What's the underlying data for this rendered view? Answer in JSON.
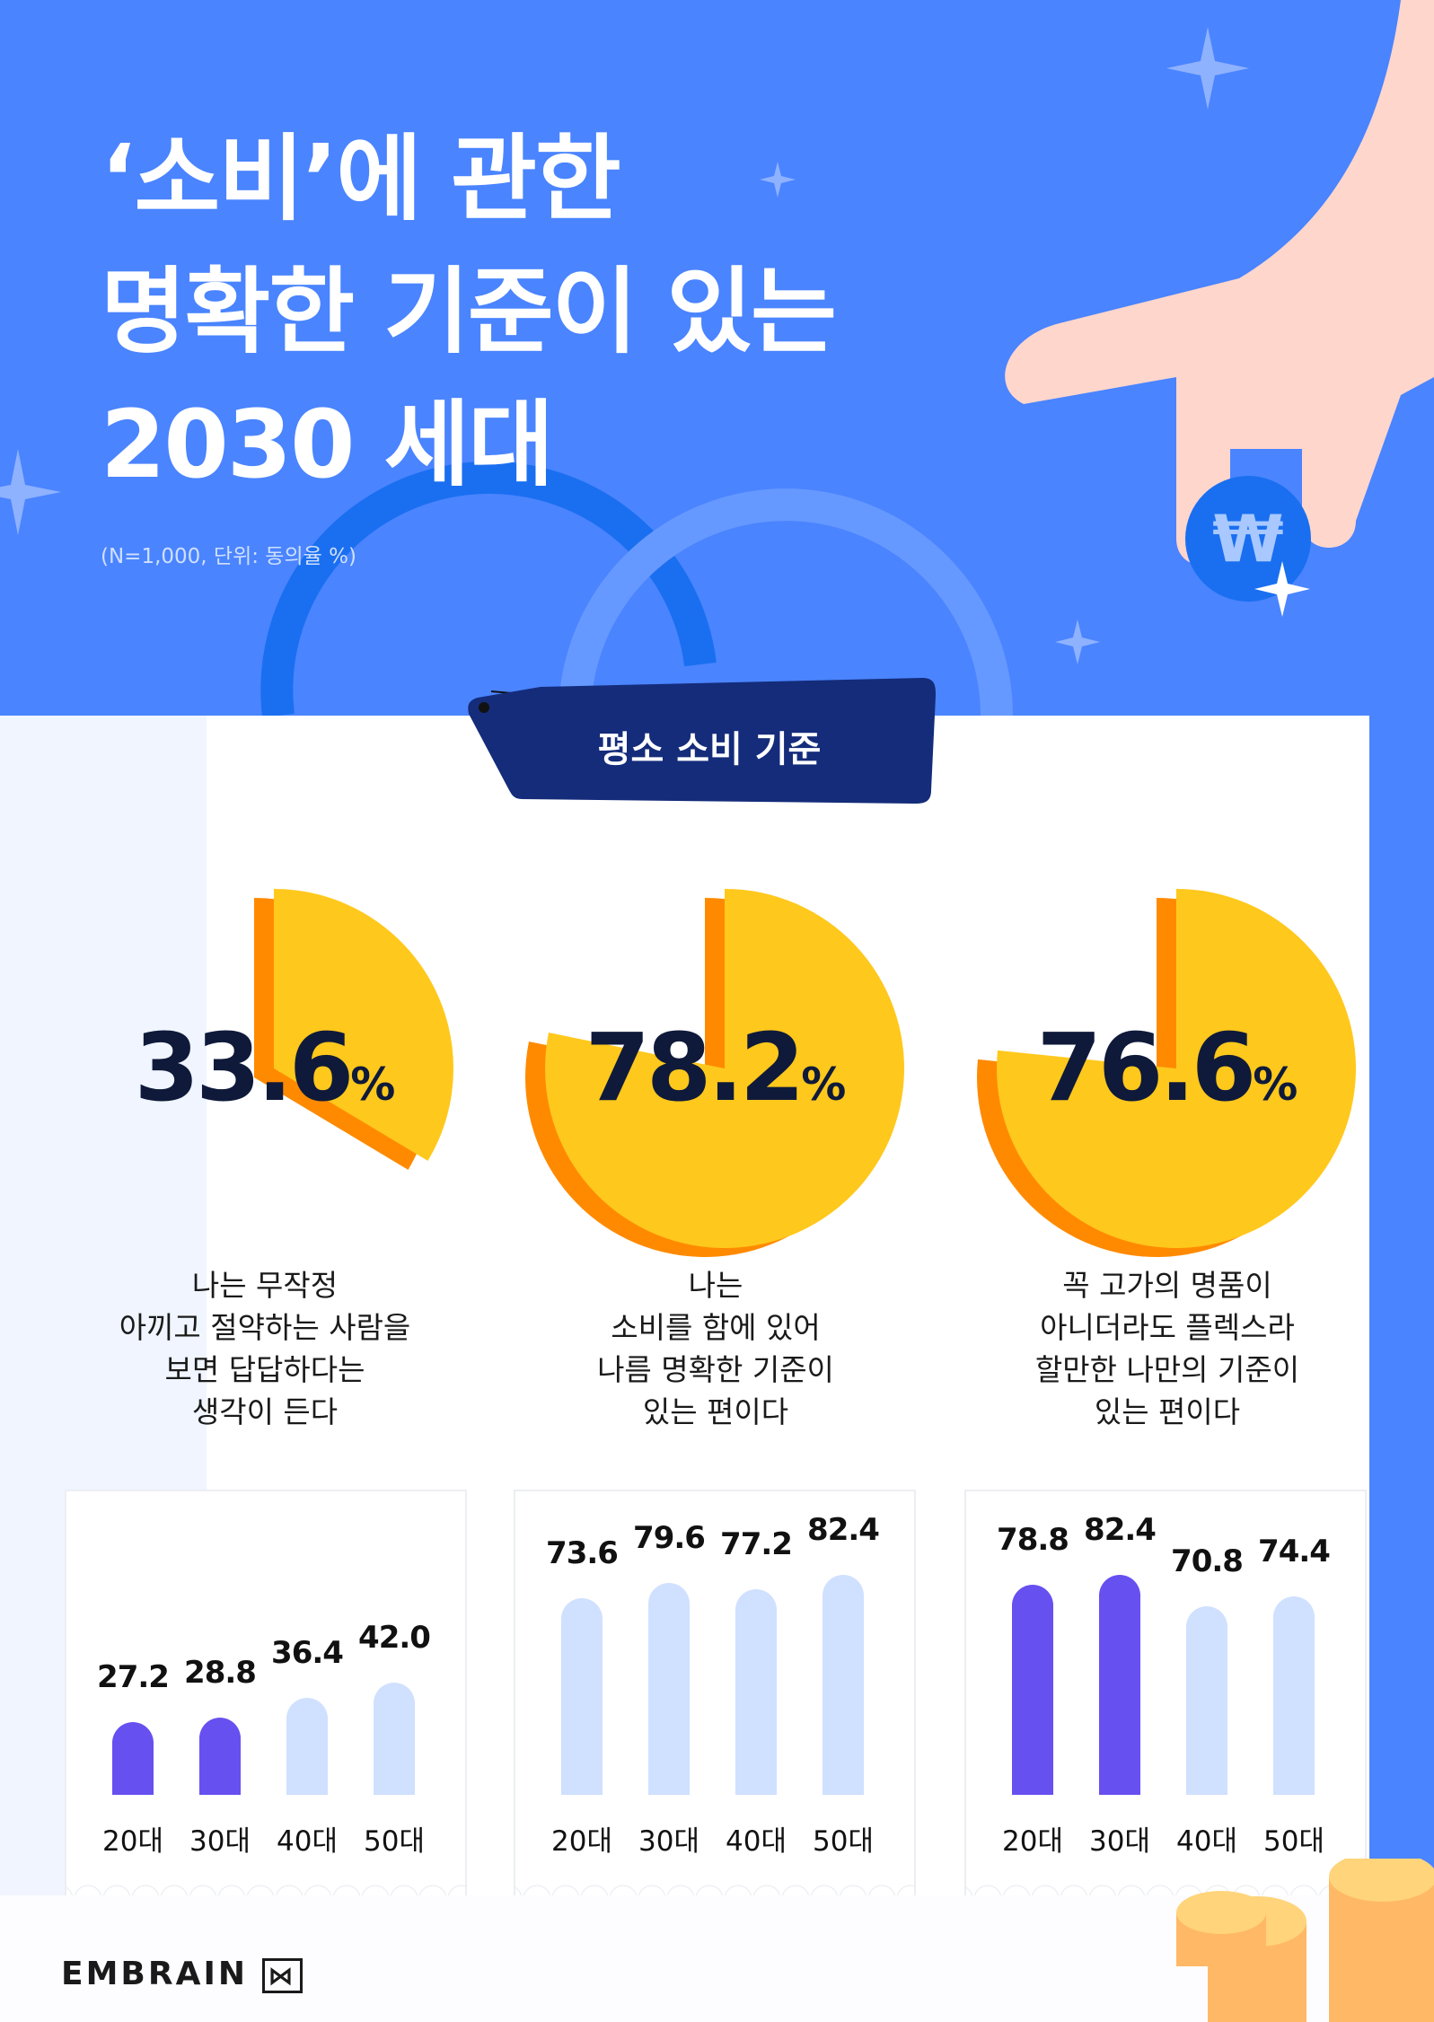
{
  "header": {
    "title_lines": [
      "‘소비’에 관한",
      "명확한 기준이 있는",
      "2030 세대"
    ],
    "subtitle": "(N=1,000, 단위: 동의율 %)"
  },
  "section_tag": "평소 소비 기준",
  "colors": {
    "background": "#4a84ff",
    "tag": "#142c7a",
    "highlight_bar": "#6650f0",
    "normal_bar": "#d0e0ff",
    "coin": "#ffcc1c"
  },
  "chart_data": [
    {
      "type": "pie",
      "value": 33.6,
      "value_label": "33.6",
      "unit": "%",
      "description": [
        "나는 무작정",
        "아끼고 절약하는 사람을",
        "보면 답답하다는",
        "생각이 든다"
      ],
      "bars": {
        "type": "bar",
        "categories": [
          "20대",
          "30대",
          "40대",
          "50대"
        ],
        "values": [
          27.2,
          28.8,
          36.4,
          42.0
        ],
        "labels": [
          "27.2",
          "28.8",
          "36.4",
          "42.0"
        ],
        "highlight": [
          true,
          true,
          false,
          false
        ]
      }
    },
    {
      "type": "pie",
      "value": 78.2,
      "value_label": "78.2",
      "unit": "%",
      "description": [
        "나는",
        "소비를 함에 있어",
        "나름 명확한 기준이",
        "있는 편이다"
      ],
      "bars": {
        "type": "bar",
        "categories": [
          "20대",
          "30대",
          "40대",
          "50대"
        ],
        "values": [
          73.6,
          79.6,
          77.2,
          82.4
        ],
        "labels": [
          "73.6",
          "79.6",
          "77.2",
          "82.4"
        ],
        "highlight": [
          false,
          false,
          false,
          false
        ]
      }
    },
    {
      "type": "pie",
      "value": 76.6,
      "value_label": "76.6",
      "unit": "%",
      "description": [
        "꼭 고가의 명품이",
        "아니더라도 플렉스라",
        "할만한 나만의 기준이",
        "있는 편이다"
      ],
      "bars": {
        "type": "bar",
        "categories": [
          "20대",
          "30대",
          "40대",
          "50대"
        ],
        "values": [
          78.8,
          82.4,
          70.8,
          74.4
        ],
        "labels": [
          "78.8",
          "82.4",
          "70.8",
          "74.4"
        ],
        "highlight": [
          true,
          true,
          false,
          false
        ]
      }
    }
  ],
  "footer": {
    "logo": "EMBRAIN"
  }
}
